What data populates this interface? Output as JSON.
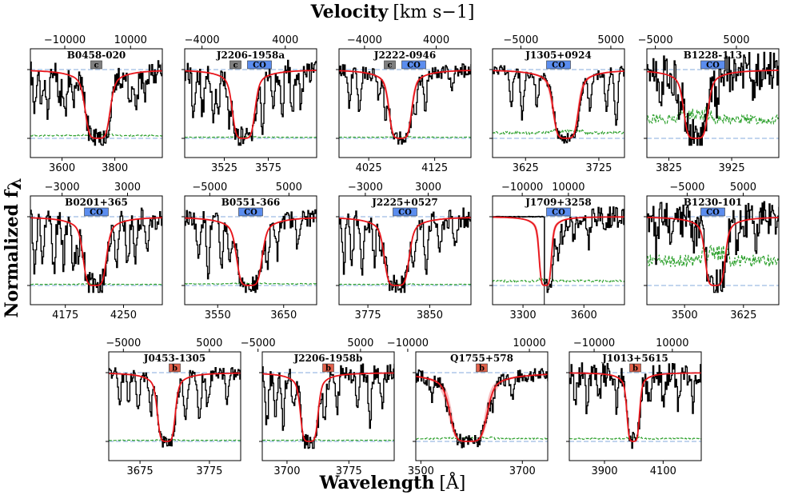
{
  "figure": {
    "top_label": "Velocity",
    "top_unit": "[km s−1]",
    "y_label": "Normalized f",
    "y_label_sub": "λ",
    "bottom_label": "Wavelength",
    "bottom_unit": "[Å]"
  },
  "colors": {
    "spectrum": "#000000",
    "model": "#e8151b",
    "model_band": "#f6a3a5",
    "continuum": "#aec7e8",
    "error": "#2ca02c",
    "badge_co": "#5b8def",
    "badge_c": "#7f7f7f",
    "badge_b": "#e0604a"
  },
  "chart_data": [
    {
      "type": "line",
      "title": "B0458-020",
      "badges": [
        "c"
      ],
      "wl_range": [
        3480,
        3980
      ],
      "wl_ticks": [
        3600,
        3800
      ],
      "center": 3735,
      "width": 22,
      "vel_ticks": [
        -10000,
        10000
      ],
      "vel_tick_labels": [
        "−10000",
        "10000"
      ],
      "noise": 0.35,
      "seed": 11,
      "extra_lines": [
        [
          3495,
          0.6
        ],
        [
          3520,
          0.5
        ],
        [
          3545,
          0.7
        ],
        [
          3590,
          0.4
        ],
        [
          3610,
          0.6
        ],
        [
          3640,
          0.4
        ],
        [
          3855,
          0.5
        ],
        [
          3880,
          0.6
        ],
        [
          3910,
          0.4
        ]
      ],
      "error_level": 0.05,
      "band": 0.03,
      "continuum": 1.0
    },
    {
      "type": "line",
      "title": "J2206-1958a",
      "badges": [
        "c",
        "CO"
      ],
      "wl_range": [
        3480,
        3630
      ],
      "wl_ticks": [
        3525,
        3575
      ],
      "center": 3547,
      "width": 6,
      "vel_ticks": [
        -4000,
        4000
      ],
      "vel_tick_labels": [
        "−4000",
        "4000"
      ],
      "noise": 0.35,
      "seed": 22,
      "extra_lines": [
        [
          3490,
          0.7
        ],
        [
          3500,
          0.6
        ],
        [
          3512,
          0.8
        ],
        [
          3518,
          0.5
        ],
        [
          3530,
          0.7
        ],
        [
          3568,
          0.8
        ],
        [
          3580,
          0.5
        ],
        [
          3590,
          0.7
        ],
        [
          3602,
          0.6
        ],
        [
          3612,
          0.5
        ]
      ],
      "error_level": 0.02,
      "band": 0.03,
      "continuum": 1.0
    },
    {
      "type": "line",
      "title": "J2222-0946",
      "badges": [
        "c",
        "CO"
      ],
      "wl_range": [
        3980,
        4180
      ],
      "wl_ticks": [
        4025,
        4125
      ],
      "center": 4073,
      "width": 8,
      "vel_ticks": [
        -4000,
        4000
      ],
      "vel_tick_labels": [
        "−4000",
        "4000"
      ],
      "noise": 0.2,
      "seed": 33,
      "extra_lines": [
        [
          3995,
          0.5
        ],
        [
          4010,
          0.6
        ],
        [
          4040,
          0.4
        ],
        [
          4050,
          0.6
        ],
        [
          4095,
          0.5
        ],
        [
          4110,
          0.5
        ],
        [
          4150,
          0.3
        ]
      ],
      "error_level": 0.02,
      "band": 0.08,
      "continuum": 1.0
    },
    {
      "type": "line",
      "title": "J1305+0924",
      "badges": [
        "CO"
      ],
      "wl_range": [
        3580,
        3760
      ],
      "wl_ticks": [
        3625,
        3725
      ],
      "center": 3680,
      "width": 8,
      "vel_ticks": [
        -5000,
        5000
      ],
      "vel_tick_labels": [
        "−5000",
        "5000"
      ],
      "noise": 0.15,
      "seed": 44,
      "extra_lines": [
        [
          3605,
          0.5
        ],
        [
          3620,
          0.7
        ],
        [
          3640,
          0.5
        ],
        [
          3695,
          0.4
        ],
        [
          3712,
          0.5
        ],
        [
          3735,
          0.6
        ],
        [
          3748,
          0.8
        ]
      ],
      "error_level": 0.1,
      "band": 0.1,
      "continuum": 1.0
    },
    {
      "type": "line",
      "title": "B1228-113",
      "badges": [
        "CO"
      ],
      "wl_range": [
        3790,
        4000
      ],
      "wl_ticks": [
        3825,
        3925
      ],
      "center": 3868,
      "width": 9,
      "vel_ticks": [
        -5000,
        5000
      ],
      "vel_tick_labels": [
        "−5000",
        "5000"
      ],
      "noise": 0.55,
      "seed": 55,
      "extra_lines": [
        [
          3810,
          0.4
        ],
        [
          3840,
          0.3
        ],
        [
          3900,
          0.4
        ],
        [
          3960,
          0.4
        ]
      ],
      "error_level": 0.35,
      "band": 0.03,
      "continuum": 1.0
    },
    {
      "type": "line",
      "title": "B0201+365",
      "badges": [
        "CO"
      ],
      "wl_range": [
        4130,
        4300
      ],
      "wl_ticks": [
        4175,
        4250
      ],
      "center": 4213,
      "width": 7,
      "vel_ticks": [
        -3000,
        3000
      ],
      "vel_tick_labels": [
        "−3000",
        "3000"
      ],
      "noise": 0.35,
      "seed": 66,
      "extra_lines": [
        [
          4135,
          0.8
        ],
        [
          4145,
          0.7
        ],
        [
          4160,
          0.8
        ],
        [
          4172,
          0.6
        ],
        [
          4185,
          0.7
        ],
        [
          4190,
          0.5
        ],
        [
          4240,
          0.6
        ],
        [
          4255,
          0.7
        ],
        [
          4265,
          0.5
        ],
        [
          4280,
          0.6
        ]
      ],
      "error_level": 0.02,
      "band": 0.04,
      "continuum": 1.0
    },
    {
      "type": "line",
      "title": "B0551-366",
      "badges": [
        "CO"
      ],
      "wl_range": [
        3500,
        3700
      ],
      "wl_ticks": [
        3550,
        3650
      ],
      "center": 3598,
      "width": 9,
      "vel_ticks": [
        -5000,
        5000
      ],
      "vel_tick_labels": [
        "−5000",
        "5000"
      ],
      "noise": 0.25,
      "seed": 77,
      "extra_lines": [
        [
          3520,
          0.6
        ],
        [
          3535,
          0.8
        ],
        [
          3555,
          0.7
        ],
        [
          3568,
          0.6
        ],
        [
          3625,
          0.6
        ],
        [
          3640,
          0.5
        ],
        [
          3670,
          0.4
        ]
      ],
      "error_level": 0.03,
      "band": 0.05,
      "continuum": 1.0
    },
    {
      "type": "line",
      "title": "J2225+0527",
      "badges": [
        "CO"
      ],
      "wl_range": [
        3740,
        3900
      ],
      "wl_ticks": [
        3775,
        3850
      ],
      "center": 3810,
      "width": 7,
      "vel_ticks": [
        -3000,
        3000
      ],
      "vel_tick_labels": [
        "−3000",
        "3000"
      ],
      "noise": 0.3,
      "seed": 88,
      "extra_lines": [
        [
          3745,
          0.7
        ],
        [
          3755,
          0.6
        ],
        [
          3768,
          0.8
        ],
        [
          3782,
          0.6
        ],
        [
          3790,
          0.5
        ],
        [
          3830,
          0.5
        ],
        [
          3845,
          0.7
        ],
        [
          3862,
          0.5
        ],
        [
          3880,
          0.4
        ]
      ],
      "error_level": 0.02,
      "band": 0.04,
      "continuum": 1.0
    },
    {
      "type": "line",
      "title": "J1709+3258",
      "badges": [
        "CO"
      ],
      "wl_range": [
        3150,
        3800
      ],
      "wl_ticks": [
        3300,
        3600
      ],
      "center": 3410,
      "width": 14,
      "vel_ticks": [
        -10000,
        10000
      ],
      "vel_tick_labels": [
        "−10000",
        "10000"
      ],
      "noise": 0.3,
      "seed": 99,
      "extra_lines": [
        [
          3440,
          0.6
        ],
        [
          3470,
          0.5
        ],
        [
          3500,
          0.4
        ],
        [
          3550,
          0.3
        ],
        [
          3620,
          0.4
        ],
        [
          3700,
          0.3
        ]
      ],
      "error_level": 0.08,
      "band": 0.15,
      "continuum": 1.0,
      "cutoff": 3405
    },
    {
      "type": "line",
      "title": "B1230-101",
      "badges": [
        "CO"
      ],
      "wl_range": [
        3420,
        3700
      ],
      "wl_ticks": [
        3500,
        3625
      ],
      "center": 3565,
      "width": 10,
      "vel_ticks": [
        -5000,
        5000
      ],
      "vel_tick_labels": [
        "−5000",
        "5000"
      ],
      "noise": 0.5,
      "seed": 111,
      "extra_lines": [
        [
          3440,
          0.5
        ],
        [
          3470,
          0.4
        ],
        [
          3520,
          0.3
        ],
        [
          3610,
          0.3
        ],
        [
          3650,
          0.3
        ]
      ],
      "error_level": 0.45,
      "band": 0.03,
      "continuum": 1.0
    },
    {
      "type": "line",
      "title": "J0453-1305",
      "badges": [
        "b"
      ],
      "wl_range": [
        3630,
        3820
      ],
      "wl_ticks": [
        3675,
        3775
      ],
      "center": 3713,
      "width": 6,
      "vel_ticks": [
        -5000,
        5000
      ],
      "vel_tick_labels": [
        "−5000",
        "5000"
      ],
      "noise": 0.2,
      "seed": 121,
      "extra_lines": [
        [
          3645,
          0.5
        ],
        [
          3658,
          0.4
        ],
        [
          3672,
          0.6
        ],
        [
          3690,
          0.5
        ],
        [
          3740,
          0.6
        ],
        [
          3760,
          0.7
        ],
        [
          3772,
          0.5
        ],
        [
          3800,
          0.4
        ]
      ],
      "error_level": 0.02,
      "band": 0.04,
      "continuum": 1.0
    },
    {
      "type": "line",
      "title": "J2206-1958b",
      "badges": [
        "b"
      ],
      "wl_range": [
        3670,
        3830
      ],
      "wl_ticks": [
        3700,
        3775
      ],
      "center": 3727,
      "width": 5,
      "vel_ticks": [
        -5000,
        5000
      ],
      "vel_tick_labels": [
        "−5000",
        "5000"
      ],
      "noise": 0.3,
      "seed": 133,
      "extra_lines": [
        [
          3675,
          0.7
        ],
        [
          3685,
          0.6
        ],
        [
          3695,
          0.7
        ],
        [
          3708,
          0.5
        ],
        [
          3745,
          0.6
        ],
        [
          3760,
          0.6
        ],
        [
          3785,
          0.5
        ],
        [
          3800,
          0.7
        ],
        [
          3815,
          0.5
        ]
      ],
      "error_level": 0.02,
      "band": 0.04,
      "continuum": 1.0
    },
    {
      "type": "line",
      "title": "Q1755+578",
      "badges": [
        "b"
      ],
      "wl_range": [
        3490,
        3750
      ],
      "wl_ticks": [
        3500,
        3700
      ],
      "center": 3594,
      "width": 17,
      "vel_ticks": [
        -10000,
        10000
      ],
      "vel_tick_labels": [
        "−10000",
        "10000"
      ],
      "noise": 0.2,
      "seed": 144,
      "extra_lines": [
        [
          3520,
          0.3
        ],
        [
          3550,
          0.3
        ],
        [
          3640,
          0.3
        ],
        [
          3680,
          0.3
        ]
      ],
      "error_level": 0.05,
      "band": 0.12,
      "continuum": 1.0
    },
    {
      "type": "line",
      "title": "J1013+5615",
      "badges": [
        "b"
      ],
      "wl_range": [
        3780,
        4230
      ],
      "wl_ticks": [
        3900,
        4100
      ],
      "center": 3998,
      "width": 10,
      "vel_ticks": [
        -10000,
        10000
      ],
      "vel_tick_labels": [
        "−10000",
        "10000"
      ],
      "noise": 0.35,
      "seed": 155,
      "extra_lines": [
        [
          3800,
          0.4
        ],
        [
          3840,
          0.5
        ],
        [
          3880,
          0.4
        ],
        [
          3940,
          0.5
        ],
        [
          4050,
          0.4
        ],
        [
          4100,
          0.5
        ],
        [
          4150,
          0.4
        ],
        [
          4200,
          0.5
        ]
      ],
      "error_level": 0.05,
      "band": 0.04,
      "continuum": 1.0
    }
  ]
}
